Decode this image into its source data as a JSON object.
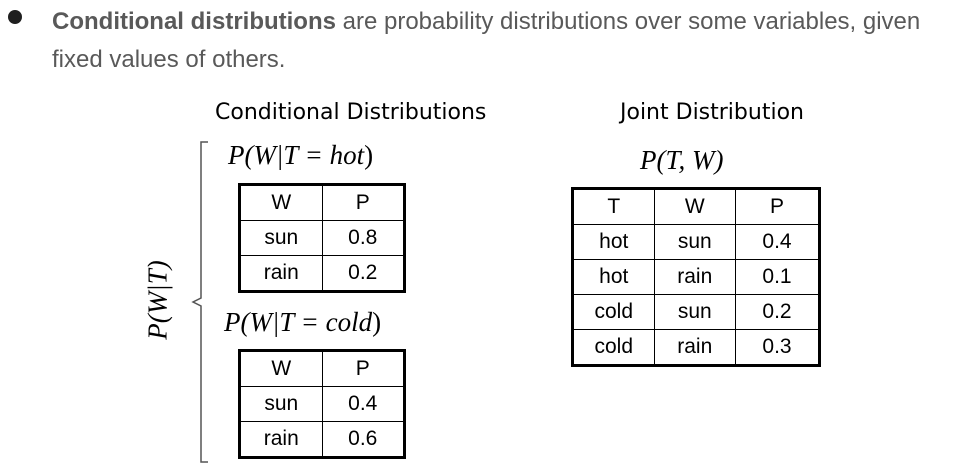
{
  "bullet": {
    "term": "Conditional distributions",
    "text": " are probability distributions over some variables, given fixed values of others."
  },
  "left": {
    "heading": "Conditional Distributions",
    "side_label": "P(W|T)",
    "hot": {
      "expr_pre": "P(W|T = ",
      "value": "hot",
      "expr_post": ")",
      "headers": [
        "W",
        "P"
      ],
      "rows": [
        [
          "sun",
          "0.8"
        ],
        [
          "rain",
          "0.2"
        ]
      ]
    },
    "cold": {
      "expr_pre": "P(W|T = ",
      "value": "cold",
      "expr_post": ")",
      "headers": [
        "W",
        "P"
      ],
      "rows": [
        [
          "sun",
          "0.4"
        ],
        [
          "rain",
          "0.6"
        ]
      ]
    }
  },
  "right": {
    "heading": "Joint Distribution",
    "expr": "P(T, W)",
    "headers": [
      "T",
      "W",
      "P"
    ],
    "rows": [
      [
        "hot",
        "sun",
        "0.4"
      ],
      [
        "hot",
        "rain",
        "0.1"
      ],
      [
        "cold",
        "sun",
        "0.2"
      ],
      [
        "cold",
        "rain",
        "0.3"
      ]
    ]
  }
}
